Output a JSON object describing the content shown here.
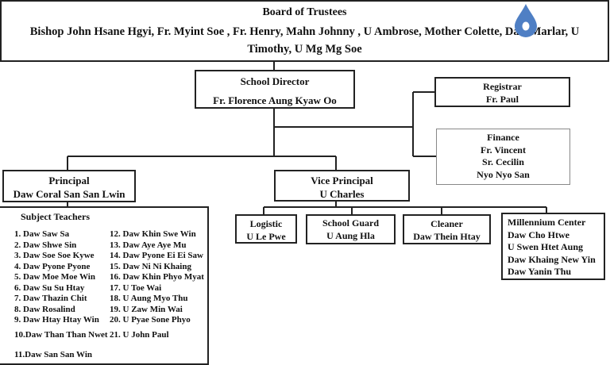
{
  "board": {
    "title": "Board of Trustees",
    "members_line1": "Bishop John Hsane  Hgyi, Fr. Myint Soe , Fr. Henry, Mahn Johnny , U Ambrose, Mother  Colette,  Daw  Marlar, U",
    "members_line2": "Timothy, U Mg Mg Soe"
  },
  "director": {
    "title": "School Director",
    "name": "Fr. Florence Aung Kyaw Oo"
  },
  "registrar": {
    "title": "Registrar",
    "name": "Fr. Paul"
  },
  "finance": {
    "title": "Finance",
    "names": [
      "Fr. Vincent",
      "Sr. Cecilin",
      "Nyo Nyo San"
    ]
  },
  "principal": {
    "title": "Principal",
    "name": "Daw Coral San San Lwin"
  },
  "vice_principal": {
    "title": "Vice Principal",
    "name": "U Charles"
  },
  "logistic": {
    "title": "Logistic",
    "name": "U Le Pwe"
  },
  "school_guard": {
    "title": "School Guard",
    "name": "U Aung Hla"
  },
  "cleaner": {
    "title": "Cleaner",
    "name": "Daw Thein Htay"
  },
  "millennium": {
    "title": "Millennium Center",
    "names": [
      "Daw Cho Htwe",
      "U Swen Htet Aung",
      "Daw Khaing New Yin",
      "Daw Yanin Thu"
    ]
  },
  "teachers": {
    "title": "Subject Teachers",
    "col1": [
      "1. Daw Saw Sa",
      "2. Daw Shwe Sin",
      "3. Daw Soe Soe Kywe",
      "4. Daw Pyone Pyone",
      "5. Daw Moe Moe Win",
      "6. Daw Su Su Htay",
      "7. Daw Thazin Chit",
      "8. Daw Rosalind",
      "9. Daw Htay Htay Win"
    ],
    "col2": [
      "12. Daw Khin Swe Win",
      "13. Daw Aye Aye Mu",
      "14. Daw Pyone Ei Ei Saw",
      "15. Daw Ni Ni Khaing",
      "16. Daw Khin Phyo Myat",
      "17. U Toe Wai",
      "18. U Aung Myo Thu",
      "19. U Zaw Min Wai",
      "20. U Pyae Sone Phyo"
    ],
    "item10": "10.Daw Than Than Nwet",
    "item21": "21. U John Paul",
    "item11": "11.Daw San San Win"
  },
  "icons": {
    "drop": "water-drop-icon"
  },
  "colors": {
    "drop": "#4f7fc4",
    "spellcheck": "#dd3333"
  }
}
